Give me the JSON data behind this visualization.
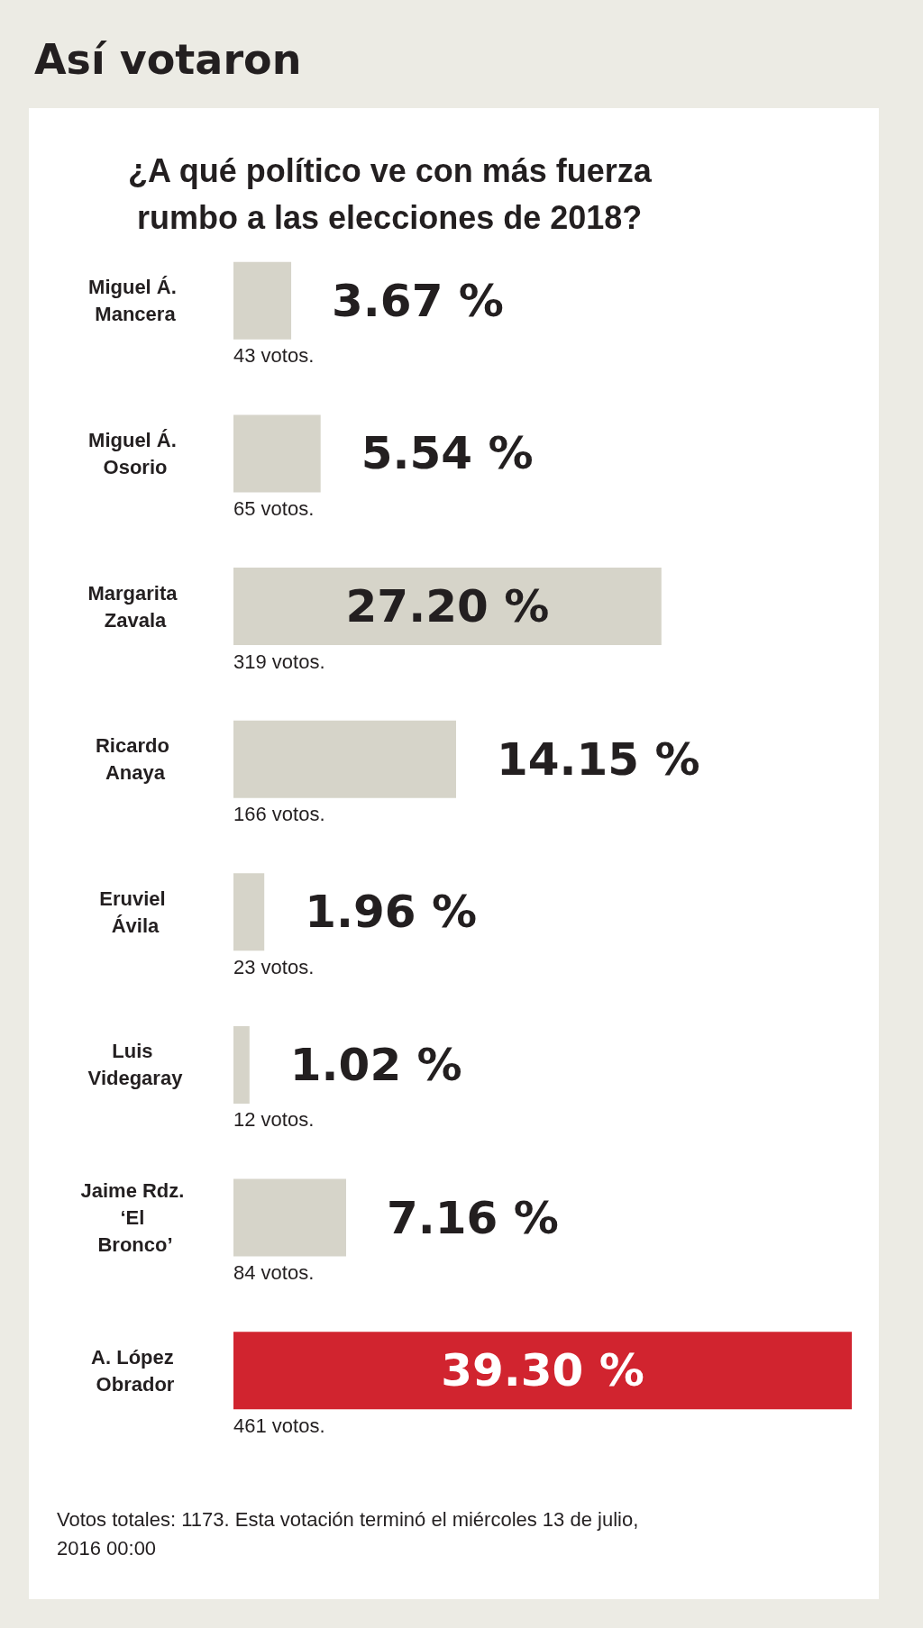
{
  "chart_data": {
    "type": "bar",
    "orientation": "horizontal",
    "title": "Así votaron",
    "subtitle": "¿A qué político ve con más fuerza rumbo a las elecciones de 2018?",
    "categories": [
      "Miguel Á. Mancera",
      "Miguel Á. Osorio",
      "Margarita Zavala",
      "Ricardo Anaya",
      "Eruviel Ávila",
      "Luis Videgaray",
      "Jaime Rdz. ‘El Bronco’",
      "A. López Obrador"
    ],
    "values": [
      3.67,
      5.54,
      27.2,
      14.15,
      1.96,
      1.02,
      7.16,
      39.3
    ],
    "value_labels": [
      "3.67 %",
      "5.54 %",
      "27.20 %",
      "14.15 %",
      "1.96 %",
      "1.02 %",
      "7.16 %",
      "39.30 %"
    ],
    "colors": [
      "#d6d4c9",
      "#d6d4c9",
      "#d6d4c9",
      "#d6d4c9",
      "#d6d4c9",
      "#d6d4c9",
      "#d6d4c9",
      "#d1242f"
    ],
    "xlim": [
      0,
      39.3
    ],
    "tick_labels": "y",
    "annotations": [
      "43 votos.",
      "65 votos.",
      "319 votos.",
      "166 votos.",
      "23 votos.",
      "12 votos.",
      "84 votos.",
      "461 votos.",
      "Votos totales: 1173. Esta votación terminó el miércoles 13 de julio, 2016 00:00"
    ]
  }
}
